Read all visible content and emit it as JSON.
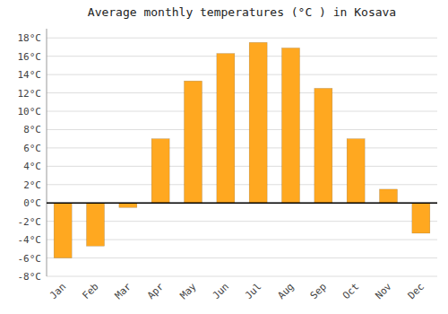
{
  "chart_data": {
    "type": "bar",
    "title": "Average monthly temperatures (°C ) in Kosava",
    "categories": [
      "Jan",
      "Feb",
      "Mar",
      "Apr",
      "May",
      "Jun",
      "Jul",
      "Aug",
      "Sep",
      "Oct",
      "Nov",
      "Dec"
    ],
    "values": [
      -6.0,
      -4.7,
      -0.5,
      7.0,
      13.3,
      16.3,
      17.5,
      16.9,
      12.5,
      7.0,
      1.5,
      -3.3
    ],
    "color": "#FFA820",
    "ylim": [
      -8,
      19
    ],
    "yticks": [
      {
        "value": -8,
        "label": "-8°C"
      },
      {
        "value": -6,
        "label": "-6°C"
      },
      {
        "value": -4,
        "label": "-4°C"
      },
      {
        "value": -2,
        "label": "-2°C"
      },
      {
        "value": 0,
        "label": "0°C"
      },
      {
        "value": 2,
        "label": "2°C"
      },
      {
        "value": 4,
        "label": "4°C"
      },
      {
        "value": 6,
        "label": "6°C"
      },
      {
        "value": 8,
        "label": "8°C"
      },
      {
        "value": 10,
        "label": "10°C"
      },
      {
        "value": 12,
        "label": "12°C"
      },
      {
        "value": 14,
        "label": "14°C"
      },
      {
        "value": 16,
        "label": "16°C"
      },
      {
        "value": 18,
        "label": "18°C"
      }
    ],
    "grid": true
  }
}
